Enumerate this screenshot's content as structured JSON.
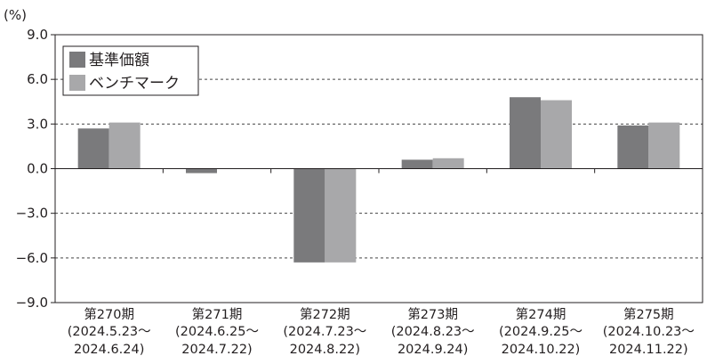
{
  "chart_data": {
    "type": "bar",
    "unit_label": "(%)",
    "categories": [
      {
        "period": "第270期",
        "range_start": "(2024.5.23〜",
        "range_end": "2024.6.24)"
      },
      {
        "period": "第271期",
        "range_start": "(2024.6.25〜",
        "range_end": "2024.7.22)"
      },
      {
        "period": "第272期",
        "range_start": "(2024.7.23〜",
        "range_end": "2024.8.22)"
      },
      {
        "period": "第273期",
        "range_start": "(2024.8.23〜",
        "range_end": "2024.9.24)"
      },
      {
        "period": "第274期",
        "range_start": "(2024.9.25〜",
        "range_end": "2024.10.22)"
      },
      {
        "period": "第275期",
        "range_start": "(2024.10.23〜",
        "range_end": "2024.11.22)"
      }
    ],
    "series": [
      {
        "name": "基準価額",
        "color": "#7a7a7c",
        "values": [
          2.7,
          -0.3,
          -6.3,
          0.6,
          4.8,
          2.9
        ]
      },
      {
        "name": "ベンチマーク",
        "color": "#a8a8aa",
        "values": [
          3.1,
          0.0,
          -6.3,
          0.7,
          4.6,
          3.1
        ]
      }
    ],
    "ylim": [
      -9.0,
      9.0
    ],
    "yticks": [
      "9.0",
      "6.0",
      "3.0",
      "0.0",
      "−3.0",
      "−6.0",
      "−9.0"
    ],
    "ytick_values": [
      9,
      6,
      3,
      0,
      -3,
      -6,
      -9
    ],
    "grid": "dashed horizontal",
    "legend_position": "top-left"
  }
}
